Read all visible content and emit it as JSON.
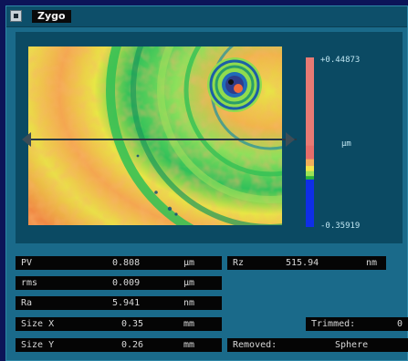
{
  "window": {
    "app_title": "Zygo"
  },
  "colorbar": {
    "max_label": "+0.44873",
    "min_label": "-0.35919",
    "unit": "µm",
    "colors": [
      "#e87a74",
      "#e56d6a",
      "#f2ad5a",
      "#f3e54a",
      "#9ce356",
      "#27b43a",
      "#0f2ee8",
      "#0614c9"
    ]
  },
  "map_colors": {
    "low": "#1f78b8",
    "mid": "#30c451",
    "high": "#e9e53f",
    "peak": "#ea5a2d"
  },
  "results": {
    "pv": {
      "label": "PV",
      "value": "0.808",
      "unit": "µm"
    },
    "rms": {
      "label": "rms",
      "value": "0.009",
      "unit": "µm"
    },
    "ra": {
      "label": "Ra",
      "value": "5.941",
      "unit": "nm"
    },
    "rz": {
      "label": "Rz",
      "value": "515.94",
      "unit": "nm"
    },
    "size_x": {
      "label": "Size X",
      "value": "0.35",
      "unit": "mm"
    },
    "size_y": {
      "label": "Size Y",
      "value": "0.26",
      "unit": "mm"
    },
    "trimmed": {
      "label": "Trimmed:",
      "value": "0"
    },
    "removed": {
      "label": "Removed:",
      "value": "Sphere"
    }
  }
}
